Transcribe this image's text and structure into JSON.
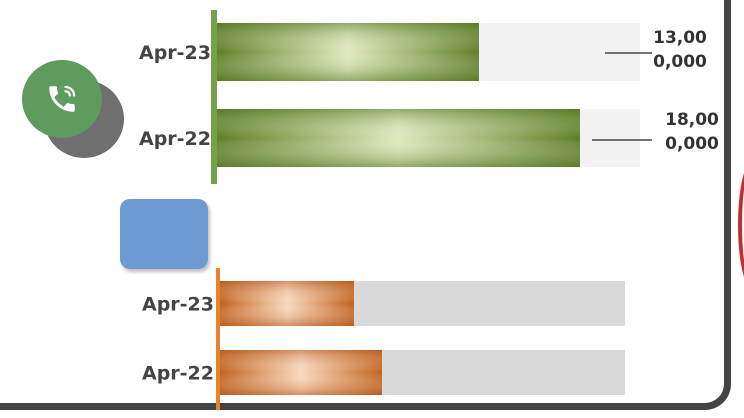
{
  "chart_data": [
    {
      "type": "bar",
      "orientation": "horizontal",
      "categories": [
        "Apr-23",
        "Apr-22"
      ],
      "values": [
        13000000,
        18000000
      ],
      "data_labels": [
        "13,00\n0,000",
        "18,00\n0,000"
      ],
      "colors": {
        "fill": "#6f8f2e",
        "fill_light": "#dbe6b9",
        "track": "#f2f2f2",
        "axis": "#77a04a"
      }
    },
    {
      "type": "bar",
      "orientation": "horizontal",
      "categories": [
        "Apr-23",
        "Apr-22"
      ],
      "values": [
        0.33,
        0.4
      ],
      "colors": {
        "fill": "#c86a22",
        "fill_light": "#f6d2b2",
        "track": "#d9d9d9",
        "axis": "#e8832a"
      }
    }
  ],
  "decor": {
    "phone_icon": "phone-icon",
    "phone_color": "#5f9a5f",
    "square_color": "#6d9ad3",
    "frame_color": "#444444",
    "arc_color": "#c0302b"
  }
}
